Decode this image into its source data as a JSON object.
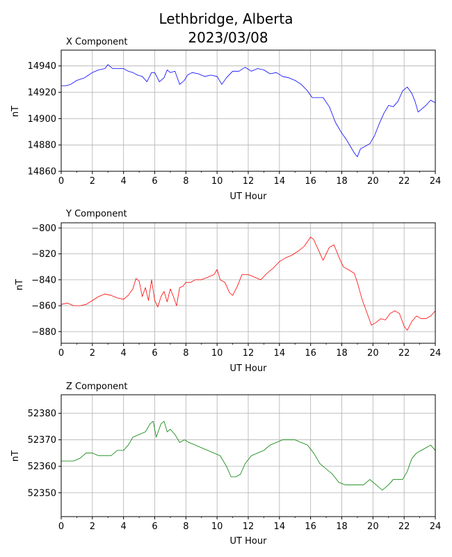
{
  "figure": {
    "title_line1": "Lethbridge, Alberta",
    "title_line2": "2023/03/08"
  },
  "chart_data": [
    {
      "type": "line",
      "title": "X Component",
      "xlabel": "UT Hour",
      "ylabel": "nT",
      "xlim": [
        0,
        24
      ],
      "ylim": [
        14860,
        14952
      ],
      "xticks": [
        0,
        2,
        4,
        6,
        8,
        10,
        12,
        14,
        16,
        18,
        20,
        22,
        24
      ],
      "yticks": [
        14860,
        14880,
        14900,
        14920,
        14940
      ],
      "grid": true,
      "color": "#0000ff",
      "series": [
        {
          "x": [
            0,
            0.3,
            0.6,
            1.0,
            1.5,
            2.0,
            2.4,
            2.8,
            3.0,
            3.3,
            3.7,
            4.0,
            4.3,
            4.6,
            4.9,
            5.2,
            5.5,
            5.8,
            6.0,
            6.3,
            6.6,
            6.8,
            7.0,
            7.3,
            7.6,
            7.9,
            8.1,
            8.4,
            8.8,
            9.2,
            9.6,
            10.0,
            10.3,
            10.6,
            11.0,
            11.4,
            11.8,
            12.2,
            12.6,
            13.0,
            13.4,
            13.8,
            14.2,
            14.6,
            15.0,
            15.4,
            15.8,
            16.1,
            16.4,
            16.8,
            17.2,
            17.6,
            18.0,
            18.3,
            18.6,
            18.8,
            19.0,
            19.2,
            19.5,
            19.8,
            20.1,
            20.4,
            20.7,
            21.0,
            21.3,
            21.6,
            21.9,
            22.2,
            22.5,
            22.7,
            22.9,
            23.1,
            23.4,
            23.7,
            24.0
          ],
          "y": [
            14925,
            14925,
            14926,
            14929,
            14931,
            14935,
            14937,
            14938,
            14941,
            14938,
            14938,
            14938,
            14936,
            14935,
            14933,
            14932,
            14928,
            14935,
            14935,
            14928,
            14931,
            14937,
            14935,
            14936,
            14926,
            14929,
            14933,
            14935,
            14934,
            14932,
            14933,
            14932,
            14926,
            14931,
            14936,
            14936,
            14939,
            14936,
            14938,
            14937,
            14934,
            14935,
            14932,
            14931,
            14929,
            14926,
            14921,
            14916,
            14916,
            14916,
            14909,
            14897,
            14889,
            14884,
            14878,
            14874,
            14871,
            14877,
            14879,
            14881,
            14887,
            14896,
            14904,
            14910,
            14909,
            14913,
            14921,
            14924,
            14919,
            14913,
            14905,
            14907,
            14910,
            14914,
            14912
          ]
        }
      ]
    },
    {
      "type": "line",
      "title": "Y Component",
      "xlabel": "UT Hour",
      "ylabel": "nT",
      "xlim": [
        0,
        24
      ],
      "ylim": [
        -889,
        -796
      ],
      "xticks": [
        0,
        2,
        4,
        6,
        8,
        10,
        12,
        14,
        16,
        18,
        20,
        22,
        24
      ],
      "yticks": [
        -880,
        -860,
        -840,
        -820,
        -800
      ],
      "grid": true,
      "color": "#ff0000",
      "series": [
        {
          "x": [
            0,
            0.4,
            0.8,
            1.2,
            1.6,
            2.0,
            2.4,
            2.8,
            3.2,
            3.6,
            4.0,
            4.3,
            4.6,
            4.8,
            5.0,
            5.2,
            5.4,
            5.6,
            5.8,
            6.0,
            6.2,
            6.4,
            6.6,
            6.8,
            7.0,
            7.2,
            7.4,
            7.6,
            7.8,
            8.0,
            8.3,
            8.6,
            9.0,
            9.4,
            9.8,
            10.0,
            10.2,
            10.5,
            10.8,
            11.0,
            11.3,
            11.6,
            12.0,
            12.4,
            12.8,
            13.2,
            13.6,
            14.0,
            14.4,
            14.8,
            15.2,
            15.6,
            16.0,
            16.2,
            16.5,
            16.8,
            17.0,
            17.2,
            17.5,
            17.8,
            18.1,
            18.4,
            18.8,
            19.0,
            19.3,
            19.6,
            19.9,
            20.2,
            20.5,
            20.8,
            21.1,
            21.4,
            21.7,
            22.0,
            22.2,
            22.5,
            22.8,
            23.1,
            23.4,
            23.7,
            24.0
          ],
          "y": [
            -859,
            -858,
            -860,
            -860,
            -859,
            -856,
            -853,
            -851,
            -852,
            -854,
            -855,
            -852,
            -847,
            -839,
            -841,
            -853,
            -846,
            -856,
            -840,
            -856,
            -861,
            -853,
            -849,
            -857,
            -847,
            -853,
            -860,
            -846,
            -845,
            -842,
            -842,
            -840,
            -840,
            -838,
            -836,
            -832,
            -840,
            -842,
            -850,
            -852,
            -845,
            -836,
            -836,
            -838,
            -840,
            -835,
            -831,
            -826,
            -823,
            -821,
            -818,
            -814,
            -807,
            -809,
            -817,
            -825,
            -820,
            -815,
            -813,
            -822,
            -830,
            -832,
            -835,
            -842,
            -855,
            -865,
            -875,
            -873,
            -870,
            -871,
            -866,
            -864,
            -866,
            -876,
            -879,
            -872,
            -868,
            -870,
            -870,
            -868,
            -864
          ]
        }
      ]
    },
    {
      "type": "line",
      "title": "Z Component",
      "xlabel": "UT Hour",
      "ylabel": "nT",
      "xlim": [
        0,
        24
      ],
      "ylim": [
        52341,
        52387
      ],
      "xticks": [
        0,
        2,
        4,
        6,
        8,
        10,
        12,
        14,
        16,
        18,
        20,
        22,
        24
      ],
      "yticks": [
        52350,
        52360,
        52370,
        52380
      ],
      "grid": true,
      "color": "#008000",
      "series": [
        {
          "x": [
            0,
            0.4,
            0.8,
            1.2,
            1.6,
            2.0,
            2.4,
            2.8,
            3.2,
            3.6,
            4.0,
            4.3,
            4.6,
            5.0,
            5.4,
            5.7,
            5.9,
            6.1,
            6.4,
            6.6,
            6.8,
            7.0,
            7.3,
            7.6,
            7.9,
            8.2,
            8.6,
            9.0,
            9.4,
            9.8,
            10.2,
            10.6,
            10.9,
            11.2,
            11.5,
            11.8,
            12.2,
            12.6,
            13.0,
            13.4,
            13.8,
            14.2,
            14.6,
            15.0,
            15.4,
            15.8,
            16.2,
            16.6,
            17.0,
            17.4,
            17.8,
            18.2,
            18.6,
            19.0,
            19.4,
            19.8,
            20.2,
            20.6,
            21.0,
            21.3,
            21.6,
            21.9,
            22.2,
            22.5,
            22.8,
            23.1,
            23.4,
            23.7,
            24.0
          ],
          "y": [
            52362,
            52362,
            52362,
            52363,
            52365,
            52365,
            52364,
            52364,
            52364,
            52366,
            52366,
            52368,
            52371,
            52372,
            52373,
            52376,
            52377,
            52371,
            52376,
            52377,
            52373,
            52374,
            52372,
            52369,
            52370,
            52369,
            52368,
            52367,
            52366,
            52365,
            52364,
            52360,
            52356,
            52356,
            52357,
            52361,
            52364,
            52365,
            52366,
            52368,
            52369,
            52370,
            52370,
            52370,
            52369,
            52368,
            52365,
            52361,
            52359,
            52357,
            52354,
            52353,
            52353,
            52353,
            52353,
            52355,
            52353,
            52351,
            52353,
            52355,
            52355,
            52355,
            52358,
            52363,
            52365,
            52366,
            52367,
            52368,
            52366
          ]
        }
      ]
    }
  ]
}
